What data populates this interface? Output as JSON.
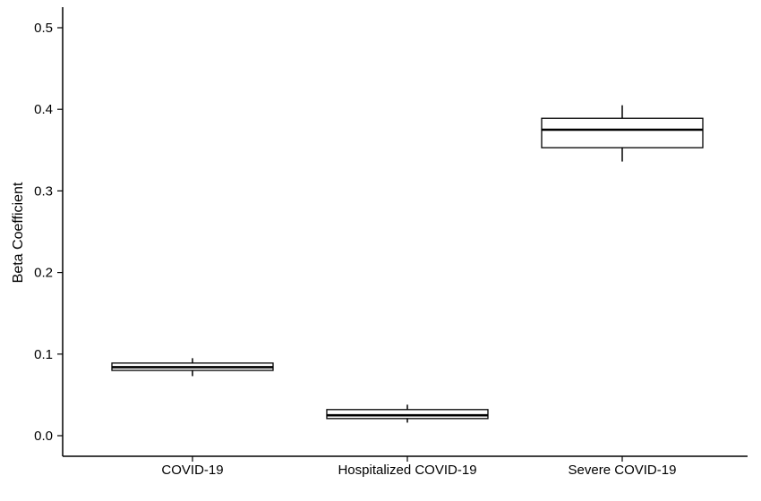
{
  "chart_data": {
    "type": "box",
    "title": "",
    "xlabel": "",
    "ylabel": "Beta Coefficient",
    "ylim": [
      -0.025,
      0.525
    ],
    "yticks": [
      "0.0",
      "0.1",
      "0.2",
      "0.3",
      "0.4",
      "0.5"
    ],
    "grid": false,
    "legend": "none",
    "colors": {
      "box_fill": "#ffffff",
      "stroke": "#000000"
    },
    "categories": [
      "COVID-19",
      "Hospitalized COVID-19",
      "Severe COVID-19"
    ],
    "boxes": [
      {
        "category": "COVID-19",
        "whisker_low": 0.073,
        "q1": 0.08,
        "median": 0.084,
        "q3": 0.089,
        "whisker_high": 0.095
      },
      {
        "category": "Hospitalized COVID-19",
        "whisker_low": 0.016,
        "q1": 0.021,
        "median": 0.025,
        "q3": 0.032,
        "whisker_high": 0.038
      },
      {
        "category": "Severe COVID-19",
        "whisker_low": 0.336,
        "q1": 0.353,
        "median": 0.375,
        "q3": 0.389,
        "whisker_high": 0.405
      }
    ]
  }
}
